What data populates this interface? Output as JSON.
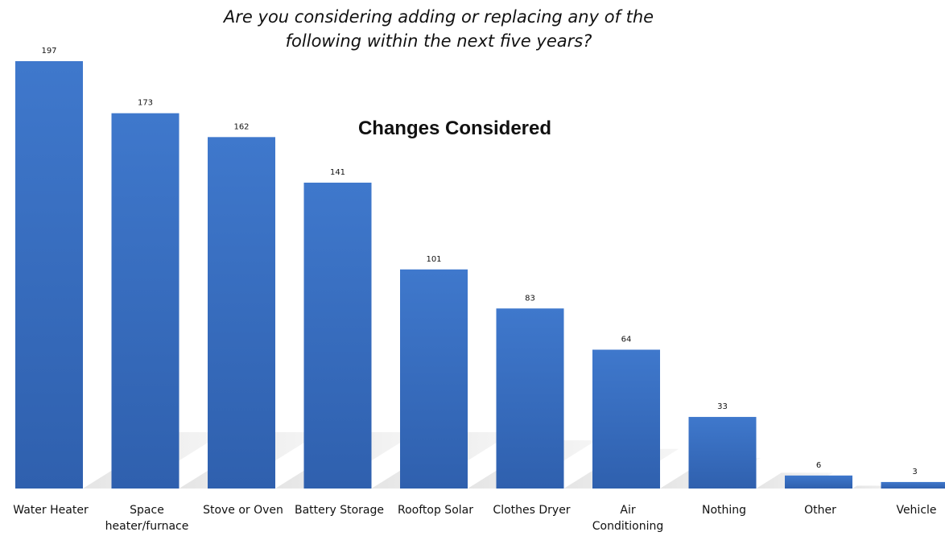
{
  "chart_data": {
    "type": "bar",
    "title": "Changes Considered",
    "subtitle": [
      "Are you considering adding or replacing any of the",
      "following within the next five years?"
    ],
    "categories": [
      [
        "Water Heater"
      ],
      [
        "Space",
        "heater/furnace"
      ],
      [
        "Stove or Oven"
      ],
      [
        "Battery Storage"
      ],
      [
        "Rooftop Solar"
      ],
      [
        "Clothes Dryer"
      ],
      [
        "Air",
        "Conditioning"
      ],
      [
        "Nothing"
      ],
      [
        "Other"
      ],
      [
        "Vehicle"
      ]
    ],
    "values": [
      197,
      173,
      162,
      141,
      101,
      83,
      64,
      33,
      6,
      3
    ],
    "xlabel": "",
    "ylabel": "",
    "ylim": [
      0,
      197
    ],
    "grid": false,
    "legend": "none",
    "bar_color": "#3D72C5",
    "bar_color_dark": "#2E5EA8",
    "shadow_color": "#D9D9D9"
  }
}
